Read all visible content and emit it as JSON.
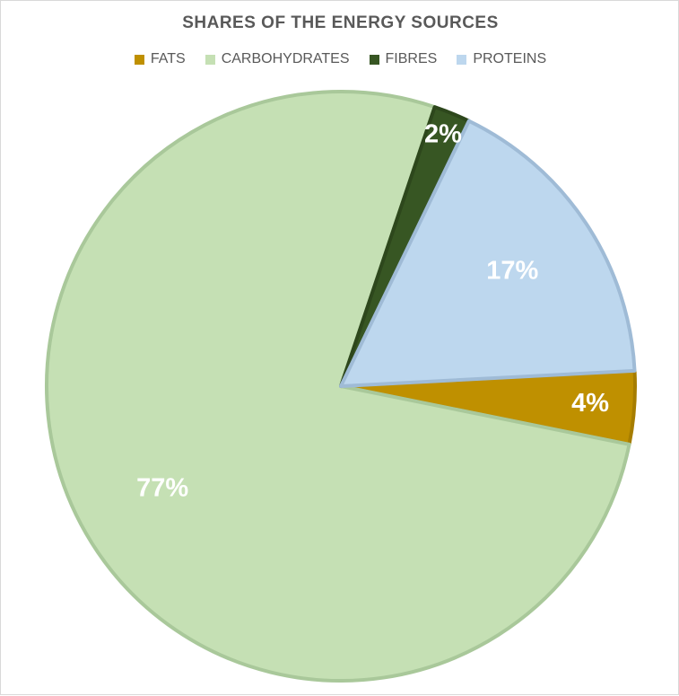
{
  "chart_data": {
    "type": "pie",
    "title": "SHARES OF THE ENERGY SOURCES",
    "legend_position": "top",
    "slices": [
      {
        "name": "FATS",
        "value": 4,
        "label": "4%",
        "color": "#bf9000",
        "stroke": "#a67d00"
      },
      {
        "name": "CARBOHYDRATES",
        "value": 77,
        "label": "77%",
        "color": "#c5e0b4",
        "stroke": "#a9c89a"
      },
      {
        "name": "FIBRES",
        "value": 2,
        "label": "2%",
        "color": "#375623",
        "stroke": "#2d471c"
      },
      {
        "name": "PROTEINS",
        "value": 17,
        "label": "17%",
        "color": "#bdd7ee",
        "stroke": "#9fbbd6"
      }
    ]
  }
}
